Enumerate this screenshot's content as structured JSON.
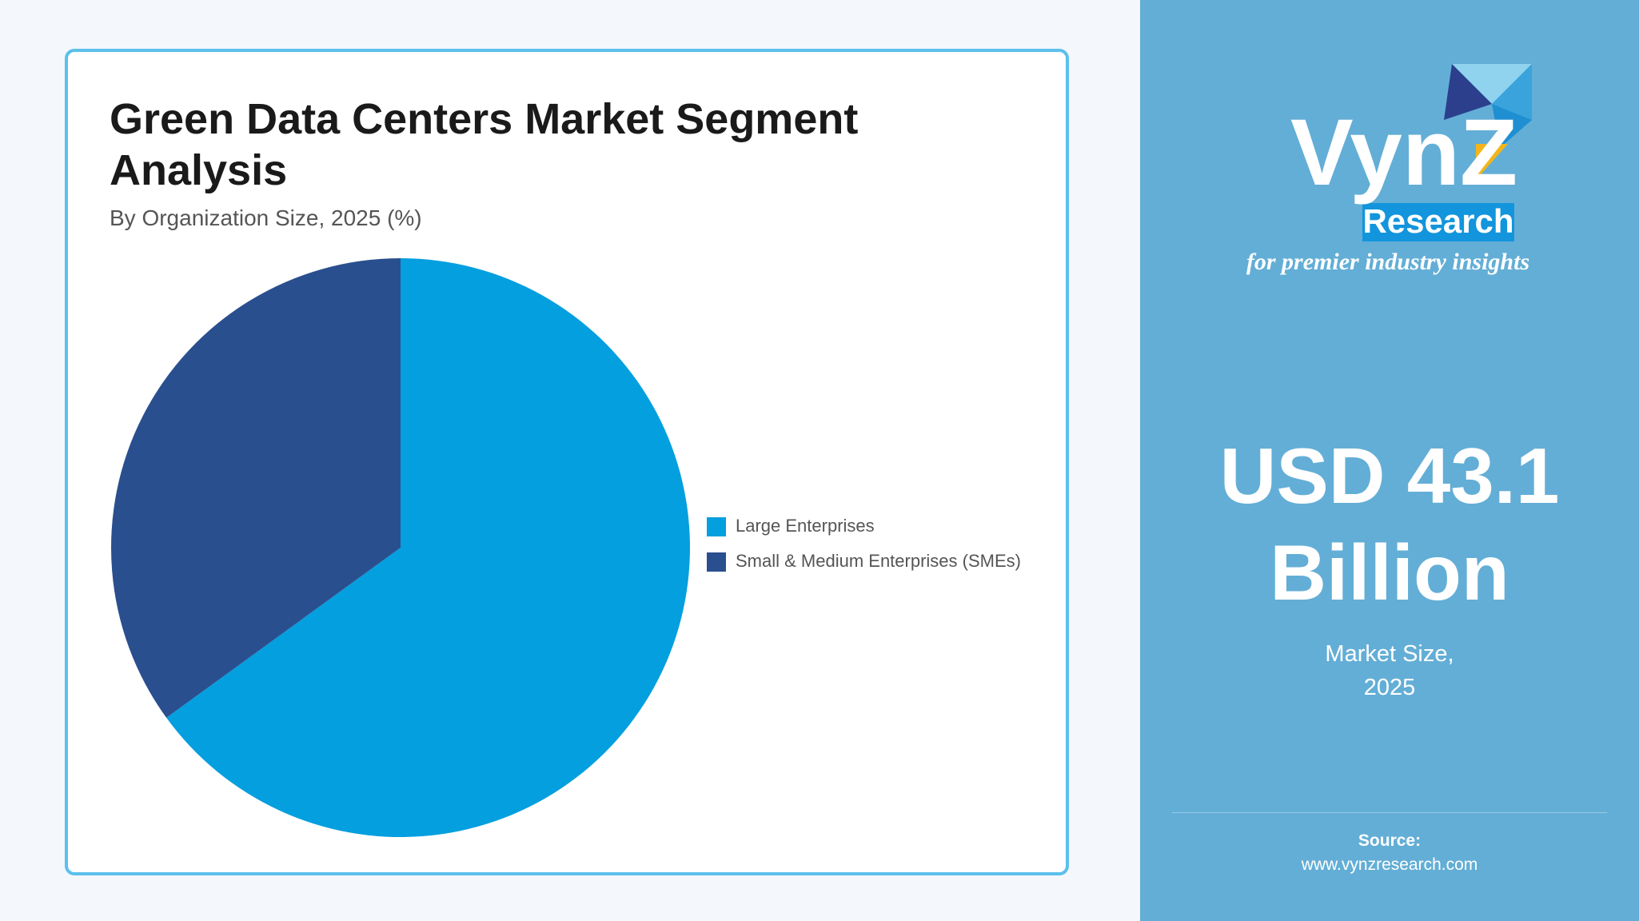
{
  "chart_data": {
    "type": "pie",
    "title": "Green Data Centers Market Segment Analysis",
    "subtitle": "By Organization Size, 2025 (%)",
    "categories": [
      "Large Enterprises",
      "Small & Medium Enterprises (SMEs)"
    ],
    "values": [
      65,
      35
    ],
    "colors": [
      "#049fdf",
      "#2a4f8f"
    ],
    "legend_position": "right"
  },
  "logo": {
    "brand": "VynZ",
    "sub_brand": "Research",
    "tagline": "for premier industry insights"
  },
  "highlight": {
    "value_lines": [
      "USD 43.1",
      "Billion"
    ],
    "caption_lines": [
      "Market Size,",
      "2025"
    ]
  },
  "source": {
    "label": "Source:",
    "url": "www.vynzresearch.com"
  }
}
